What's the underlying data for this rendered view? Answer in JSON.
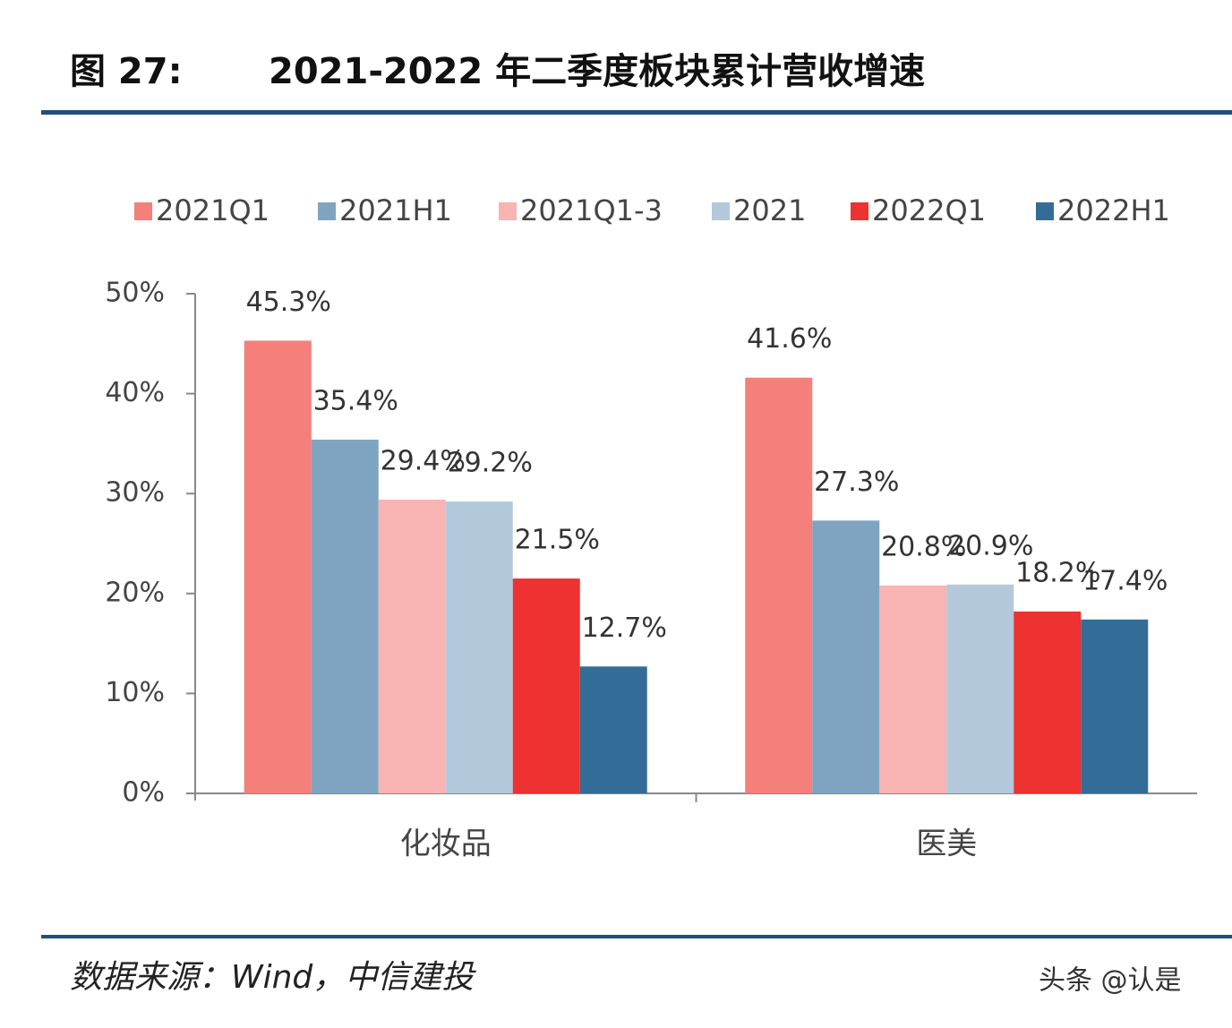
{
  "header": {
    "figure": "图 27:",
    "title": "2021-2022 年二季度板块累计营收增速"
  },
  "chart_data": {
    "type": "bar",
    "categories": [
      "化妆品",
      "医美"
    ],
    "series": [
      {
        "name": "2021Q1",
        "color": "#f47f7b",
        "values": [
          45.3,
          41.6
        ],
        "value_labels": [
          "45.3%",
          "41.6%"
        ]
      },
      {
        "name": "2021H1",
        "color": "#7fa4c2",
        "values": [
          35.4,
          27.3
        ],
        "value_labels": [
          "35.4%",
          "27.3%"
        ]
      },
      {
        "name": "2021Q1-3",
        "color": "#f8b3b2",
        "values": [
          29.4,
          20.8
        ],
        "value_labels": [
          "29.4%",
          "20.8%"
        ]
      },
      {
        "name": "2021",
        "color": "#b3c8db",
        "values": [
          29.2,
          20.9
        ],
        "value_labels": [
          "29.2%",
          "20.9%"
        ]
      },
      {
        "name": "2022Q1",
        "color": "#ee3131",
        "values": [
          21.5,
          18.2
        ],
        "value_labels": [
          "21.5%",
          "18.2%"
        ]
      },
      {
        "name": "2022H1",
        "color": "#336d97",
        "values": [
          12.7,
          17.4
        ],
        "value_labels": [
          "12.7%",
          "17.4%"
        ]
      }
    ],
    "ylim": [
      0,
      50
    ],
    "yticks": [
      {
        "value": 0,
        "label": "0%"
      },
      {
        "value": 10,
        "label": "10%"
      },
      {
        "value": 20,
        "label": "20%"
      },
      {
        "value": 30,
        "label": "30%"
      },
      {
        "value": 40,
        "label": "40%"
      },
      {
        "value": 50,
        "label": "50%"
      }
    ],
    "legend": "top",
    "grid": false
  },
  "footer": {
    "source": "数据来源：Wind，中信建投",
    "watermark": "头条 @认是"
  }
}
